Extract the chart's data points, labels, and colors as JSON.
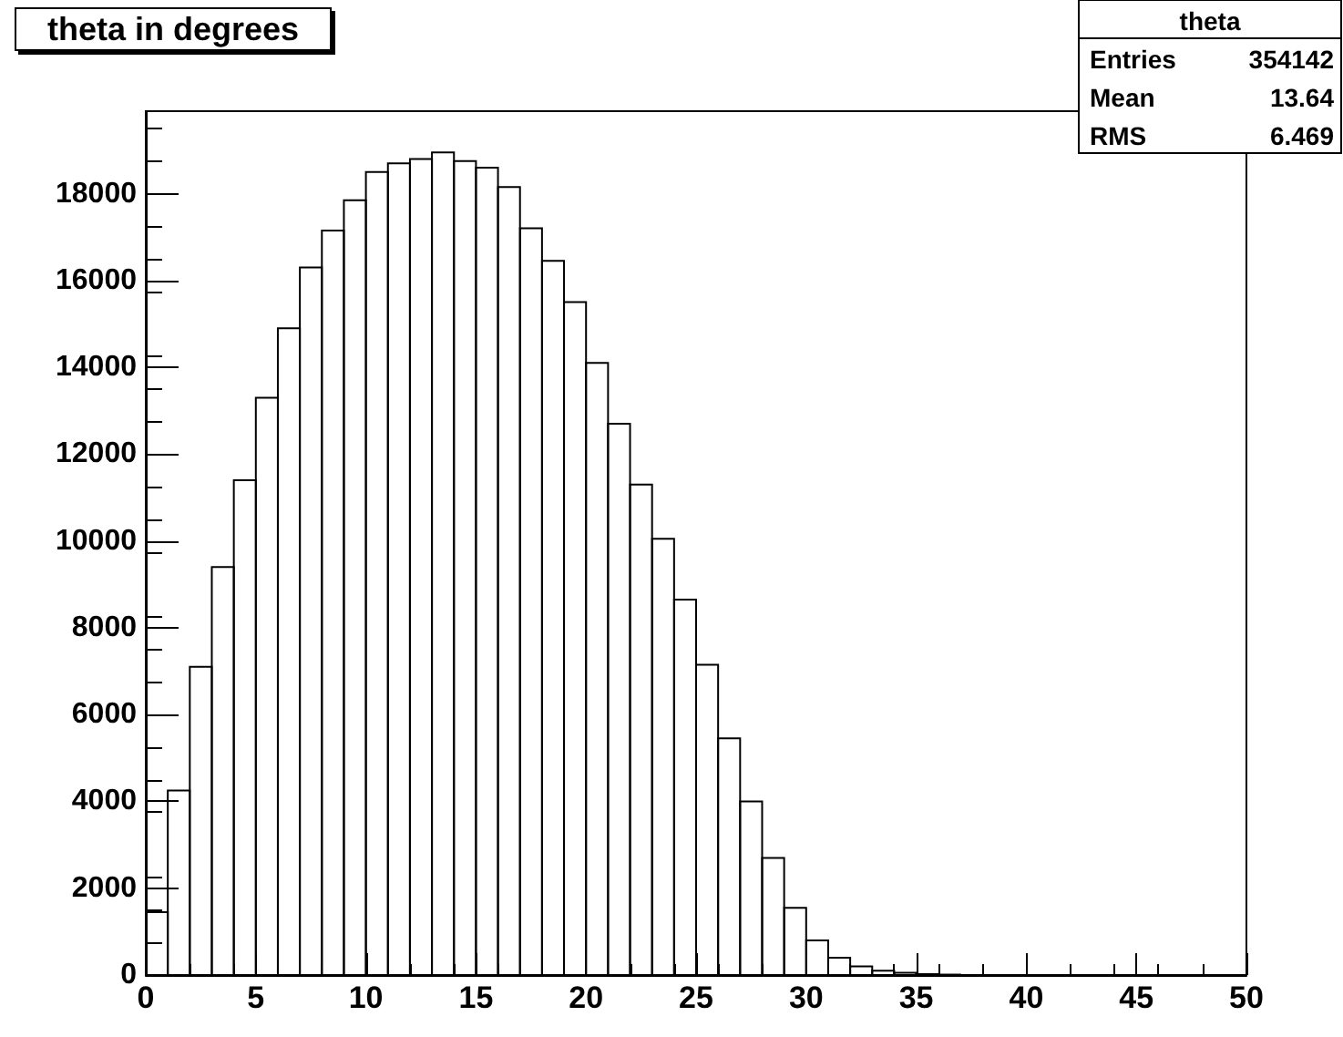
{
  "chart_data": {
    "type": "histogram",
    "title": "theta in degrees",
    "bins": [
      0,
      1,
      2,
      3,
      4,
      5,
      6,
      7,
      8,
      9,
      10,
      11,
      12,
      13,
      14,
      15,
      16,
      17,
      18,
      19,
      20,
      21,
      22,
      23,
      24,
      25,
      26,
      27,
      28,
      29,
      30,
      31,
      32,
      33,
      34,
      35,
      36,
      37
    ],
    "values": [
      1450,
      4250,
      7100,
      9400,
      11400,
      13300,
      14900,
      16300,
      17150,
      17850,
      18500,
      18700,
      18800,
      18950,
      18750,
      18600,
      18150,
      17200,
      16450,
      15500,
      14100,
      12700,
      11300,
      10050,
      8650,
      7150,
      5450,
      4000,
      2700,
      1550,
      800,
      400,
      200,
      100,
      50,
      20,
      10
    ],
    "color": "#000000",
    "xlim": [
      0,
      50
    ],
    "xticks": [
      0,
      5,
      10,
      15,
      20,
      25,
      30,
      35,
      40,
      45,
      50
    ],
    "ylim": [
      0,
      19900
    ],
    "yticks": [
      0,
      2000,
      4000,
      6000,
      8000,
      10000,
      12000,
      14000,
      16000,
      18000
    ],
    "grid": false,
    "annotations": [
      "theta",
      "Entries 354142",
      "Mean 13.64",
      "RMS 6.469"
    ]
  }
}
